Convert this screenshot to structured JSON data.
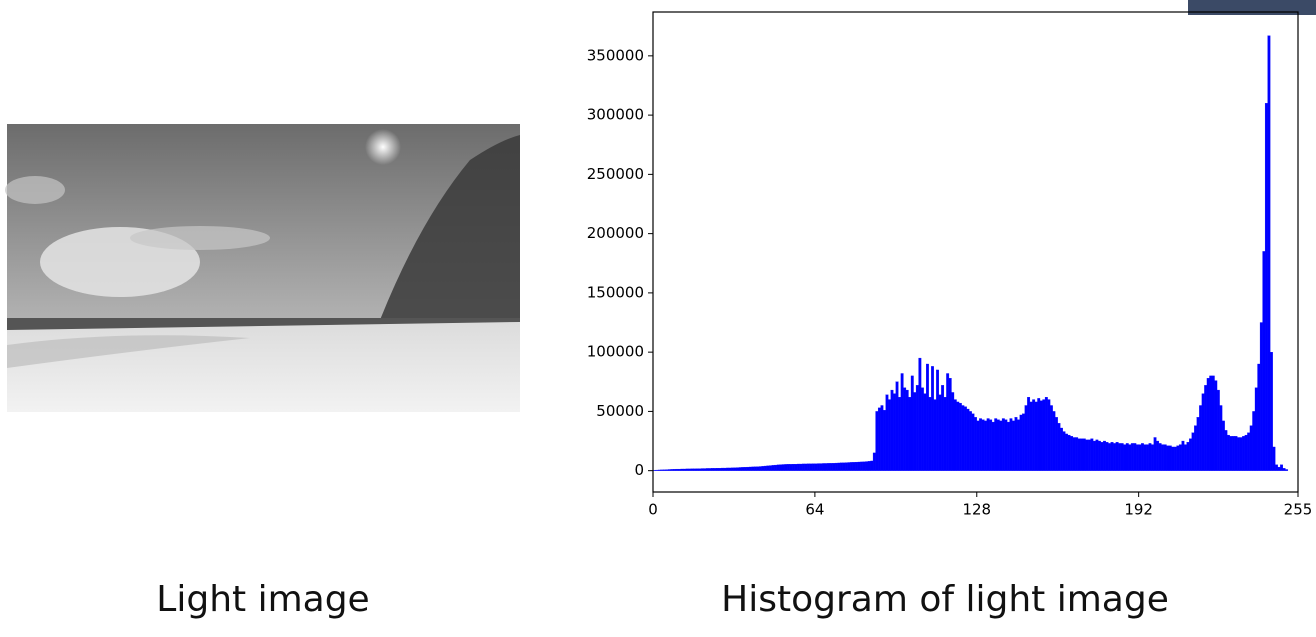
{
  "chart_data": {
    "type": "histogram",
    "color": "#0000ff",
    "bins": [
      0,
      1,
      2,
      3,
      4,
      5,
      6,
      7,
      8,
      9,
      10,
      11,
      12,
      13,
      14,
      15,
      16,
      17,
      18,
      19,
      20,
      21,
      22,
      23,
      24,
      25,
      26,
      27,
      28,
      29,
      30,
      31,
      32,
      33,
      34,
      35,
      36,
      37,
      38,
      39,
      40,
      41,
      42,
      43,
      44,
      45,
      46,
      47,
      48,
      49,
      50,
      51,
      52,
      53,
      54,
      55,
      56,
      57,
      58,
      59,
      60,
      61,
      62,
      63,
      64,
      65,
      66,
      67,
      68,
      69,
      70,
      71,
      72,
      73,
      74,
      75,
      76,
      77,
      78,
      79,
      80,
      81,
      82,
      83,
      84,
      85,
      86,
      87,
      88,
      89,
      90,
      91,
      92,
      93,
      94,
      95,
      96,
      97,
      98,
      99,
      100,
      101,
      102,
      103,
      104,
      105,
      106,
      107,
      108,
      109,
      110,
      111,
      112,
      113,
      114,
      115,
      116,
      117,
      118,
      119,
      120,
      121,
      122,
      123,
      124,
      125,
      126,
      127,
      128,
      129,
      130,
      131,
      132,
      133,
      134,
      135,
      136,
      137,
      138,
      139,
      140,
      141,
      142,
      143,
      144,
      145,
      146,
      147,
      148,
      149,
      150,
      151,
      152,
      153,
      154,
      155,
      156,
      157,
      158,
      159,
      160,
      161,
      162,
      163,
      164,
      165,
      166,
      167,
      168,
      169,
      170,
      171,
      172,
      173,
      174,
      175,
      176,
      177,
      178,
      179,
      180,
      181,
      182,
      183,
      184,
      185,
      186,
      187,
      188,
      189,
      190,
      191,
      192,
      193,
      194,
      195,
      196,
      197,
      198,
      199,
      200,
      201,
      202,
      203,
      204,
      205,
      206,
      207,
      208,
      209,
      210,
      211,
      212,
      213,
      214,
      215,
      216,
      217,
      218,
      219,
      220,
      221,
      222,
      223,
      224,
      225,
      226,
      227,
      228,
      229,
      230,
      231,
      232,
      233,
      234,
      235,
      236,
      237,
      238,
      239,
      240,
      241,
      242,
      243,
      244,
      245,
      246,
      247,
      248,
      249,
      250,
      251,
      252,
      253,
      254,
      255
    ],
    "counts": [
      400,
      500,
      600,
      700,
      800,
      900,
      1000,
      1100,
      1200,
      1300,
      1300,
      1400,
      1400,
      1500,
      1500,
      1600,
      1600,
      1700,
      1700,
      1800,
      1800,
      1900,
      1900,
      2000,
      2000,
      2100,
      2100,
      2200,
      2200,
      2300,
      2300,
      2400,
      2500,
      2600,
      2700,
      2800,
      2900,
      3000,
      3100,
      3200,
      3300,
      3400,
      3500,
      3700,
      3900,
      4100,
      4300,
      4500,
      4700,
      4900,
      5100,
      5200,
      5300,
      5400,
      5400,
      5500,
      5500,
      5600,
      5600,
      5700,
      5700,
      5800,
      5800,
      5900,
      5900,
      6000,
      6000,
      6100,
      6100,
      6200,
      6200,
      6300,
      6400,
      6500,
      6600,
      6700,
      6800,
      6900,
      7000,
      7100,
      7200,
      7300,
      7400,
      7500,
      7700,
      7900,
      8200,
      15000,
      50000,
      53000,
      55000,
      51000,
      64000,
      60000,
      68000,
      65000,
      75000,
      62000,
      82000,
      70000,
      68000,
      62000,
      80000,
      66000,
      72000,
      95000,
      70000,
      65000,
      90000,
      62000,
      88000,
      60000,
      85000,
      64000,
      72000,
      62000,
      82000,
      78000,
      66000,
      60000,
      58000,
      57000,
      55000,
      54000,
      52000,
      50000,
      48000,
      45000,
      42000,
      44000,
      43000,
      42000,
      44000,
      43000,
      41000,
      44000,
      43000,
      42000,
      44000,
      43000,
      41000,
      44000,
      42000,
      45000,
      43000,
      47000,
      48000,
      55000,
      62000,
      58000,
      60000,
      58000,
      61000,
      59000,
      60000,
      62000,
      60000,
      55000,
      50000,
      45000,
      40000,
      36000,
      33000,
      31000,
      30000,
      29000,
      28000,
      28000,
      27000,
      27000,
      27000,
      26000,
      26000,
      27000,
      25000,
      26000,
      25000,
      24000,
      25000,
      24000,
      23000,
      24000,
      23000,
      24000,
      23000,
      23000,
      22000,
      23000,
      22000,
      23000,
      23000,
      22000,
      22000,
      23000,
      22000,
      22000,
      23000,
      22000,
      28000,
      25000,
      23000,
      22000,
      22000,
      21000,
      21000,
      20000,
      20000,
      21000,
      22000,
      25000,
      22000,
      24000,
      27000,
      32000,
      38000,
      45000,
      55000,
      65000,
      72000,
      78000,
      80000,
      80000,
      76000,
      68000,
      55000,
      42000,
      34000,
      30000,
      29000,
      29000,
      29000,
      28000,
      28000,
      29000,
      30000,
      32000,
      38000,
      50000,
      70000,
      90000,
      125000,
      185000,
      310000,
      367000,
      100000,
      20000,
      5000,
      3000,
      5000,
      2000,
      1000,
      0,
      0,
      0,
      0
    ],
    "xlim": [
      0,
      255
    ],
    "ylim": [
      -18000,
      387000
    ],
    "xticks": [
      0,
      64,
      128,
      192,
      255
    ],
    "yticks": [
      0,
      50000,
      100000,
      150000,
      200000,
      250000,
      300000,
      350000
    ]
  },
  "captions": {
    "image": "Light image",
    "chart": "Histogram of light image"
  }
}
